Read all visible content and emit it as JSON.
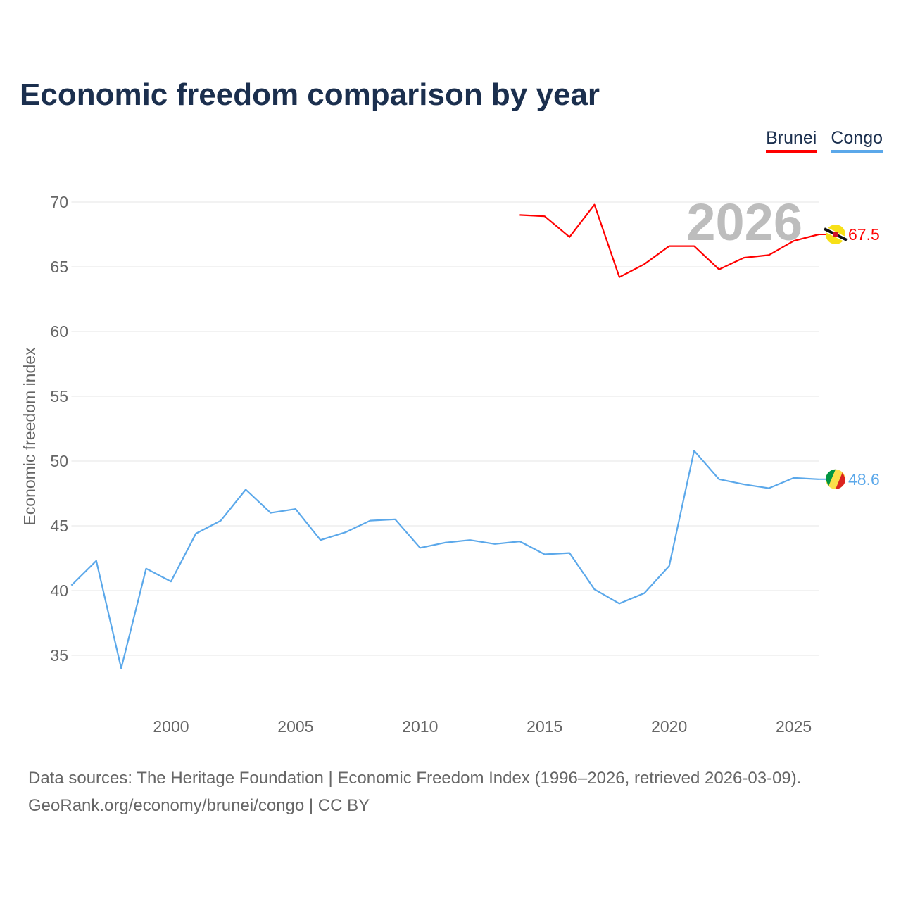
{
  "chart_data": {
    "type": "line",
    "title": "Economic freedom comparison by year",
    "xlabel": "",
    "ylabel": "Economic freedom index",
    "xlim": [
      1996,
      2026
    ],
    "ylim": [
      31.5,
      74
    ],
    "yticks": [
      35,
      40,
      45,
      50,
      55,
      60,
      65,
      70
    ],
    "xticks": [
      2000,
      2005,
      2010,
      2015,
      2020,
      2025
    ],
    "grid": true,
    "legend_position": "top-right",
    "current_year_label": "2026",
    "series": [
      {
        "name": "Brunei",
        "color": "#ff0000",
        "end_label": "67.5",
        "flag": "brunei-flag-icon",
        "x": [
          2014,
          2015,
          2016,
          2017,
          2018,
          2019,
          2020,
          2021,
          2022,
          2023,
          2024,
          2025,
          2026
        ],
        "values": [
          69.0,
          68.9,
          67.3,
          69.8,
          64.2,
          65.2,
          66.6,
          66.6,
          64.8,
          65.7,
          65.9,
          67.0,
          67.5
        ]
      },
      {
        "name": "Congo",
        "color": "#5ba8ea",
        "end_label": "48.6",
        "flag": "congo-flag-icon",
        "x": [
          1996,
          1997,
          1998,
          1999,
          2000,
          2001,
          2002,
          2003,
          2004,
          2005,
          2006,
          2007,
          2008,
          2009,
          2010,
          2011,
          2012,
          2013,
          2014,
          2015,
          2016,
          2017,
          2018,
          2019,
          2020,
          2021,
          2022,
          2023,
          2024,
          2025,
          2026
        ],
        "values": [
          40.4,
          42.3,
          34.0,
          41.7,
          40.7,
          44.4,
          45.4,
          47.8,
          46.0,
          46.3,
          43.9,
          44.5,
          45.4,
          45.5,
          43.3,
          43.7,
          43.9,
          43.6,
          43.8,
          42.8,
          42.9,
          40.1,
          39.0,
          39.8,
          41.9,
          50.8,
          48.6,
          48.2,
          47.9,
          48.7,
          48.6
        ]
      }
    ]
  },
  "source": {
    "line1": "Data sources: The Heritage Foundation | Economic Freedom Index (1996–2026, retrieved 2026-03-09).",
    "line2": "GeoRank.org/economy/brunei/congo | CC BY"
  }
}
